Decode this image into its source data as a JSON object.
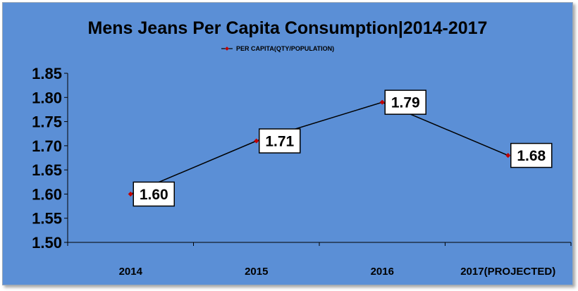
{
  "chart_data": {
    "type": "line",
    "title": "Mens Jeans Per Capita Consumption|2014-2017",
    "categories": [
      "2014",
      "2015",
      "2016",
      "2017(PROJECTED)"
    ],
    "series": [
      {
        "name": "PER CAPITA(QTY/POPULATION)",
        "values": [
          1.6,
          1.71,
          1.79,
          1.68
        ],
        "data_labels": [
          "1.60",
          "1.71",
          "1.79",
          "1.68"
        ],
        "color": "#000000",
        "marker_color": "#c00000"
      }
    ],
    "yticks": [
      "1.50",
      "1.55",
      "1.60",
      "1.65",
      "1.70",
      "1.75",
      "1.80",
      "1.85"
    ],
    "ylim": [
      1.5,
      1.85
    ],
    "legend_position": "top-center",
    "grid": false,
    "background_color": "#5b8fd6"
  }
}
